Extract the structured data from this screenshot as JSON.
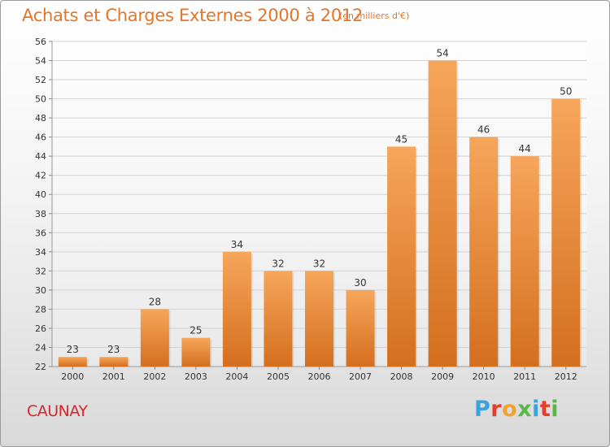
{
  "header": {
    "title": "Achats et Charges Externes 2000 à 2012",
    "unit": "(en milliers d'€)"
  },
  "footer": {
    "commune": "CAUNAY",
    "logo_text": "Proxiti"
  },
  "colors": {
    "title": "#e3762a",
    "bar_top": "#f6a65b",
    "bar_bottom": "#d46f1e",
    "commune": "#d9262b",
    "logo": [
      "#3aa3dd",
      "#e53c2e",
      "#f3a230",
      "#58b947",
      "#3aa3dd",
      "#e53c2e",
      "#58b947"
    ]
  },
  "chart_data": {
    "type": "bar",
    "title": "Achats et Charges Externes 2000 à 2012",
    "subtitle": "(en milliers d'€)",
    "categories": [
      "2000",
      "2001",
      "2002",
      "2003",
      "2004",
      "2005",
      "2006",
      "2007",
      "2008",
      "2009",
      "2010",
      "2011",
      "2012"
    ],
    "values": [
      23,
      23,
      28,
      25,
      34,
      32,
      32,
      30,
      45,
      54,
      46,
      44,
      50
    ],
    "ylim": [
      22,
      56
    ],
    "yticks": [
      22,
      24,
      26,
      28,
      30,
      32,
      34,
      36,
      38,
      40,
      42,
      44,
      46,
      48,
      50,
      52,
      54,
      56
    ],
    "grid": true,
    "data_labels": true
  }
}
